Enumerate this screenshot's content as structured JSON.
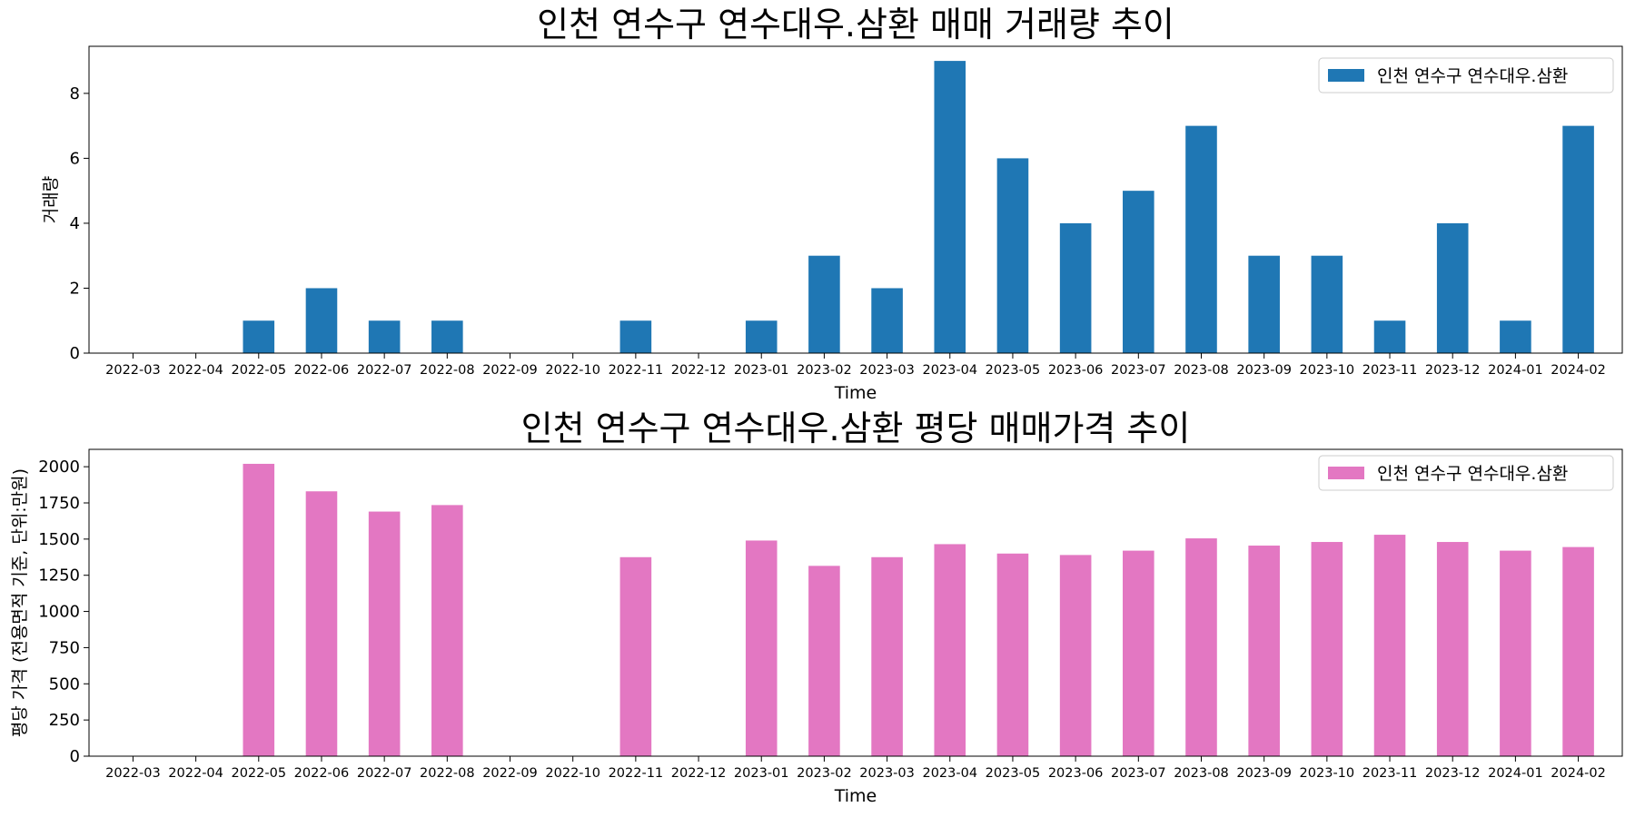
{
  "chart_data": [
    {
      "type": "bar",
      "title": "인천 연수구 연수대우.삼환 매매 거래량 추이",
      "xlabel": "Time",
      "ylabel": "거래량",
      "ylim": [
        0,
        9.45
      ],
      "yticks": [
        0,
        2,
        4,
        6,
        8
      ],
      "grid": false,
      "legend_position": "top-right",
      "categories": [
        "2022-03",
        "2022-04",
        "2022-05",
        "2022-06",
        "2022-07",
        "2022-08",
        "2022-09",
        "2022-10",
        "2022-11",
        "2022-12",
        "2023-01",
        "2023-02",
        "2023-03",
        "2023-04",
        "2023-05",
        "2023-06",
        "2023-07",
        "2023-08",
        "2023-09",
        "2023-10",
        "2023-11",
        "2023-12",
        "2024-01",
        "2024-02"
      ],
      "series": [
        {
          "name": "인천 연수구 연수대우.삼환",
          "color": "#1f77b4",
          "values": [
            0,
            0,
            1,
            2,
            1,
            1,
            0,
            0,
            1,
            0,
            1,
            3,
            2,
            9,
            6,
            4,
            5,
            7,
            3,
            3,
            1,
            4,
            1,
            7
          ]
        }
      ]
    },
    {
      "type": "bar",
      "title": "인천 연수구 연수대우.삼환 평당 매매가격 추이",
      "xlabel": "Time",
      "ylabel": "평당 가격 (전용면적 기준, 단위:만원)",
      "ylim": [
        0,
        2120
      ],
      "yticks": [
        0,
        250,
        500,
        750,
        1000,
        1250,
        1500,
        1750,
        2000
      ],
      "grid": false,
      "legend_position": "top-right",
      "categories": [
        "2022-03",
        "2022-04",
        "2022-05",
        "2022-06",
        "2022-07",
        "2022-08",
        "2022-09",
        "2022-10",
        "2022-11",
        "2022-12",
        "2023-01",
        "2023-02",
        "2023-03",
        "2023-04",
        "2023-05",
        "2023-06",
        "2023-07",
        "2023-08",
        "2023-09",
        "2023-10",
        "2023-11",
        "2023-12",
        "2024-01",
        "2024-02"
      ],
      "series": [
        {
          "name": "인천 연수구 연수대우.삼환",
          "color": "#e377c2",
          "values": [
            0,
            0,
            2020,
            1830,
            1690,
            1735,
            0,
            0,
            1375,
            0,
            1490,
            1315,
            1375,
            1465,
            1400,
            1390,
            1420,
            1505,
            1455,
            1480,
            1530,
            1480,
            1420,
            1445
          ]
        }
      ]
    }
  ]
}
